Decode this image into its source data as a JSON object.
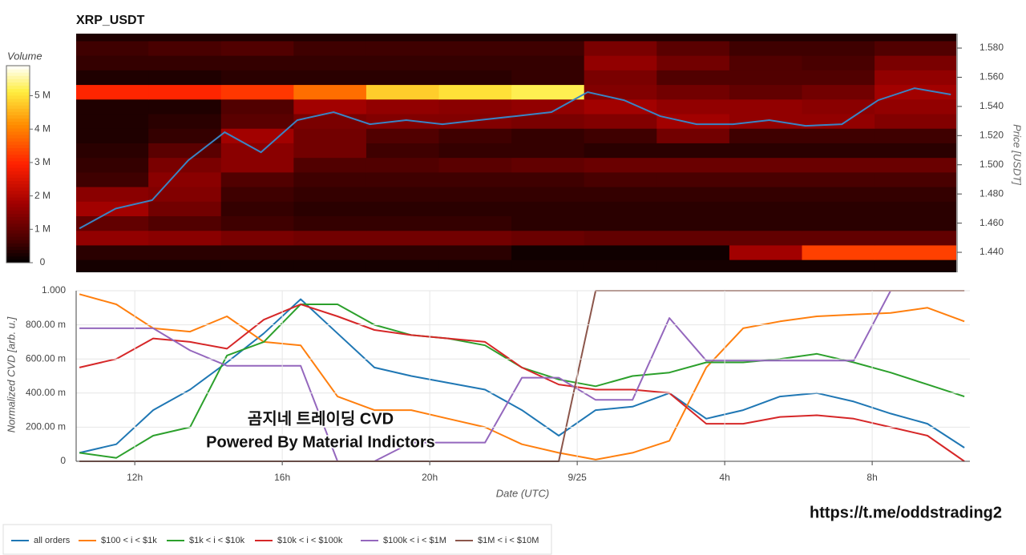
{
  "chart_data": [
    {
      "type": "heatmap",
      "title": "XRP_USDT",
      "ylabel": "Price [USDT]",
      "xlim": [
        10.41,
        34.65
      ],
      "x_edges": [
        10.41,
        12.4,
        14.4,
        16.4,
        18.4,
        20.4,
        22.4,
        24.4,
        26.4,
        28.4,
        30.4,
        32.4,
        34.65
      ],
      "y_edges": [
        1.425,
        1.435,
        1.445,
        1.455,
        1.465,
        1.475,
        1.485,
        1.495,
        1.505,
        1.515,
        1.525,
        1.535,
        1.545,
        1.555,
        1.565,
        1.575,
        1.585,
        1.595
      ],
      "z": [
        [
          0.2,
          0.2,
          0.2,
          0.2,
          0.2,
          0.2,
          0.2,
          0.2,
          0.2,
          0.2,
          0.2,
          0.2
        ],
        [
          0.4,
          0.4,
          0.4,
          0.4,
          0.4,
          0.4,
          0.15,
          0.15,
          0.15,
          1.8,
          3.3,
          3.3
        ],
        [
          1.6,
          1.5,
          1.3,
          1.2,
          1.2,
          1.2,
          1.1,
          1.0,
          1.0,
          1.0,
          1.0,
          1.0
        ],
        [
          1.0,
          0.8,
          0.6,
          0.5,
          0.5,
          0.5,
          0.4,
          0.4,
          0.4,
          0.4,
          0.4,
          0.4
        ],
        [
          1.8,
          1.2,
          0.5,
          0.4,
          0.4,
          0.4,
          0.4,
          0.4,
          0.4,
          0.4,
          0.4,
          0.4
        ],
        [
          1.5,
          1.4,
          0.6,
          0.5,
          0.5,
          0.5,
          0.5,
          0.5,
          0.5,
          0.5,
          0.5,
          0.5
        ],
        [
          0.6,
          1.5,
          0.8,
          0.6,
          0.6,
          0.6,
          0.6,
          0.7,
          0.7,
          0.7,
          0.7,
          0.7
        ],
        [
          0.5,
          1.3,
          1.5,
          0.8,
          0.8,
          0.9,
          1.0,
          1.1,
          1.1,
          1.1,
          1.1,
          1.1
        ],
        [
          0.4,
          0.9,
          1.5,
          1.2,
          0.6,
          0.5,
          0.5,
          0.4,
          0.4,
          0.4,
          0.4,
          0.4
        ],
        [
          0.3,
          0.5,
          1.8,
          1.2,
          0.8,
          0.6,
          0.5,
          0.6,
          1.2,
          0.6,
          0.6,
          0.6
        ],
        [
          0.3,
          0.4,
          0.9,
          1.3,
          1.4,
          1.4,
          1.3,
          1.4,
          1.8,
          1.6,
          1.6,
          1.4
        ],
        [
          0.3,
          0.3,
          0.8,
          1.8,
          1.6,
          1.5,
          1.6,
          1.8,
          1.6,
          1.6,
          1.5,
          1.6
        ],
        [
          3.0,
          3.0,
          3.2,
          3.8,
          4.8,
          5.0,
          5.2,
          1.4,
          1.2,
          1.0,
          1.2,
          1.8
        ],
        [
          0.3,
          0.3,
          0.4,
          0.4,
          0.4,
          0.4,
          0.5,
          1.3,
          0.8,
          0.8,
          0.8,
          1.6
        ],
        [
          0.5,
          0.5,
          0.5,
          0.5,
          0.5,
          0.5,
          0.5,
          1.6,
          1.2,
          0.8,
          0.7,
          1.3
        ],
        [
          0.6,
          0.7,
          0.8,
          0.6,
          0.6,
          0.6,
          0.6,
          1.3,
          0.9,
          0.6,
          0.6,
          0.8
        ],
        [
          0.3,
          0.3,
          0.3,
          0.3,
          0.3,
          0.3,
          0.3,
          0.3,
          0.3,
          0.3,
          0.3,
          0.3
        ]
      ],
      "ylim": [
        1.4263,
        1.5899
      ],
      "yticks": [
        {
          "value": 1.44,
          "label": "1.440"
        },
        {
          "value": 1.46,
          "label": "1.460"
        },
        {
          "value": 1.48,
          "label": "1.480"
        },
        {
          "value": 1.5,
          "label": "1.500"
        },
        {
          "value": 1.52,
          "label": "1.520"
        },
        {
          "value": 1.54,
          "label": "1.540"
        },
        {
          "value": 1.56,
          "label": "1.560"
        },
        {
          "value": 1.58,
          "label": "1.580"
        }
      ],
      "colorbar": {
        "title": "Volume",
        "lim": [
          0,
          5.9
        ],
        "ticks": [
          0,
          {
            "value": 1,
            "label": "1 M"
          },
          {
            "value": 2,
            "label": "2 M"
          },
          {
            "value": 3,
            "label": "3 M"
          },
          {
            "value": 4,
            "label": "4 M"
          },
          {
            "value": 5,
            "label": "5 M"
          }
        ]
      },
      "x": [
        10.5,
        11.5,
        12.5,
        13.5,
        14.5,
        15.5,
        16.5,
        17.5,
        18.5,
        19.5,
        20.5,
        21.5,
        22.5,
        23.5,
        24.5,
        25.5,
        26.5,
        27.5,
        28.5,
        29.5,
        30.5,
        31.5,
        32.5,
        33.5,
        34.5
      ],
      "series": [
        {
          "color": "#3a84c4",
          "values": [
            1.4564,
            1.47,
            1.4757,
            1.5031,
            1.5223,
            1.5086,
            1.5306,
            1.5361,
            1.5278,
            1.5306,
            1.5278,
            1.5306,
            1.5333,
            1.5361,
            1.5498,
            1.5443,
            1.5333,
            1.5278,
            1.5278,
            1.5306,
            1.5267,
            1.5278,
            1.5443,
            1.5525,
            1.5482
          ]
        }
      ]
    },
    {
      "type": "line",
      "xlabel": "Date (UTC)",
      "ylabel": "Normalized CVD [arb. u.]",
      "grid": true,
      "legend": "bottom",
      "xlim": [
        10.41,
        34.65
      ],
      "xticks": [
        {
          "value": 12,
          "label": "12h"
        },
        {
          "value": 16,
          "label": "16h"
        },
        {
          "value": 20,
          "label": "20h"
        },
        {
          "value": 24,
          "label": "9/25"
        },
        {
          "value": 28,
          "label": "4h"
        },
        {
          "value": 32,
          "label": "8h"
        }
      ],
      "ylim": [
        0,
        1
      ],
      "yticks": [
        0,
        {
          "value": 0.2,
          "label": "200.00 m"
        },
        {
          "value": 0.4,
          "label": "400.00 m"
        },
        {
          "value": 0.6,
          "label": "600.00 m"
        },
        {
          "value": 0.8,
          "label": "800.00 m"
        },
        {
          "value": 1,
          "label": "1.000"
        }
      ],
      "x": [
        10.5,
        11.5,
        12.5,
        13.5,
        14.5,
        15.5,
        16.5,
        17.5,
        18.5,
        19.5,
        20.5,
        21.5,
        22.5,
        23.5,
        24.5,
        25.5,
        26.5,
        27.5,
        28.5,
        29.5,
        30.5,
        31.5,
        32.5,
        33.5,
        34.5
      ],
      "series": [
        {
          "name": "all orders",
          "color": "#1f77b4",
          "values": [
            0.05,
            0.1,
            0.3,
            0.42,
            0.58,
            0.75,
            0.95,
            0.75,
            0.55,
            0.5,
            0.46,
            0.42,
            0.3,
            0.15,
            0.3,
            0.32,
            0.4,
            0.25,
            0.3,
            0.38,
            0.4,
            0.35,
            0.28,
            0.22,
            0.08
          ]
        },
        {
          "name": "$100 < i < $1k",
          "color": "#ff7f0e",
          "values": [
            0.98,
            0.92,
            0.78,
            0.76,
            0.85,
            0.7,
            0.68,
            0.38,
            0.3,
            0.3,
            0.25,
            0.2,
            0.1,
            0.05,
            0.01,
            0.05,
            0.12,
            0.55,
            0.78,
            0.82,
            0.85,
            0.86,
            0.87,
            0.9,
            0.82
          ]
        },
        {
          "name": "$1k < i < $10k",
          "color": "#2ca02c",
          "values": [
            0.05,
            0.02,
            0.15,
            0.2,
            0.62,
            0.7,
            0.92,
            0.92,
            0.8,
            0.74,
            0.72,
            0.68,
            0.55,
            0.48,
            0.44,
            0.5,
            0.52,
            0.58,
            0.58,
            0.6,
            0.63,
            0.58,
            0.52,
            0.45,
            0.38
          ]
        },
        {
          "name": "$10k < i < $100k",
          "color": "#d62728",
          "values": [
            0.55,
            0.6,
            0.72,
            0.7,
            0.66,
            0.83,
            0.92,
            0.85,
            0.77,
            0.74,
            0.72,
            0.7,
            0.55,
            0.45,
            0.42,
            0.42,
            0.4,
            0.22,
            0.22,
            0.26,
            0.27,
            0.25,
            0.2,
            0.15,
            0.0
          ]
        },
        {
          "name": "$100k < i < $1M",
          "color": "#9467bd",
          "values": [
            0.78,
            0.78,
            0.78,
            0.65,
            0.56,
            0.56,
            0.56,
            0.0,
            0.0,
            0.11,
            0.11,
            0.11,
            0.49,
            0.49,
            0.36,
            0.36,
            0.84,
            0.59,
            0.59,
            0.59,
            0.59,
            0.59,
            1.0,
            1.0,
            1.0
          ]
        },
        {
          "name": "$1M < i < $10M",
          "color": "#8c564b",
          "values": [
            0,
            0,
            0,
            0,
            0,
            0,
            0,
            0,
            0,
            0,
            0,
            0,
            0,
            0,
            1.0,
            1.0,
            1.0,
            1.0,
            1.0,
            1.0,
            1.0,
            1.0,
            1.0,
            1.0,
            1.0
          ]
        }
      ],
      "annotations": [
        "곰지네 트레이딩 CVD",
        "Powered By Material Indictors"
      ]
    }
  ],
  "link": "https://t.me/oddstrading2"
}
